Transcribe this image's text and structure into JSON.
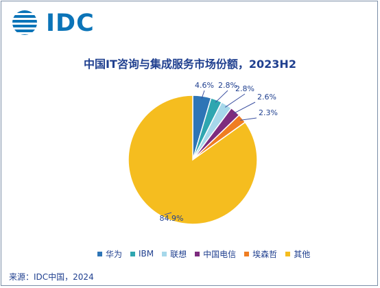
{
  "logo": {
    "text": "IDC"
  },
  "source": "来源：IDC中国，2024",
  "chart_data": {
    "type": "pie",
    "title": "中国IT咨询与集成服务市场份额，2023H2",
    "categories": [
      "华为",
      "IBM",
      "联想",
      "中国电信",
      "埃森哲",
      "其他"
    ],
    "values": [
      4.6,
      2.8,
      2.8,
      2.6,
      2.3,
      84.9
    ],
    "labels": [
      "4.6%",
      "2.8%",
      "2.8%",
      "2.6%",
      "2.3%",
      "84.9%"
    ],
    "colors": [
      "#2e75b6",
      "#2fa6b0",
      "#a6d8ea",
      "#7d2c7e",
      "#ef7d22",
      "#f5bd1f"
    ],
    "legend_position": "bottom"
  }
}
